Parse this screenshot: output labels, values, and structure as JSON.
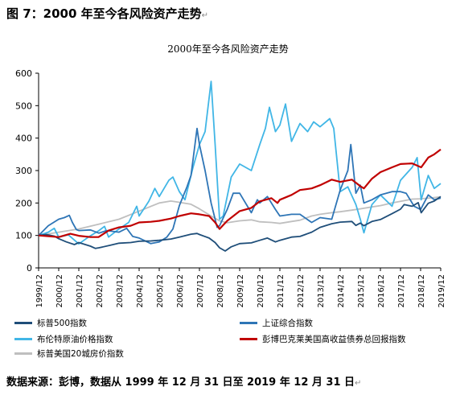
{
  "figure": {
    "label": "图 7：2000 年至今各风险资产走势",
    "trail_mark": "↵"
  },
  "footer": {
    "text": "数据来源：彭博，数据从 1999 年 12 月 31 日至 2019 年 12 月 31 日",
    "trail_mark": "↵"
  },
  "chart_data": {
    "type": "line",
    "title": "2000年至今各风险资产走势",
    "ylim": [
      0,
      600
    ],
    "yticks": [
      0,
      100,
      200,
      300,
      400,
      500,
      600
    ],
    "x_range": [
      "1999/12",
      "2019/12"
    ],
    "xticks": [
      "1999/12",
      "2000/12",
      "2001/12",
      "2002/12",
      "2003/12",
      "2004/12",
      "2005/12",
      "2006/12",
      "2007/12",
      "2008/12",
      "2009/12",
      "2010/12",
      "2011/12",
      "2012/12",
      "2013/12",
      "2014/12",
      "2015/12",
      "2016/12",
      "2017/12",
      "2018/12",
      "2019/12"
    ],
    "grid": false,
    "legend_position": "bottom",
    "series": [
      {
        "name": "标普500指数",
        "color": "#1f4e79",
        "points": [
          [
            1999.92,
            100
          ],
          [
            2000.3,
            103
          ],
          [
            2000.7,
            98
          ],
          [
            2000.92,
            90
          ],
          [
            2001.3,
            80
          ],
          [
            2001.7,
            72
          ],
          [
            2001.92,
            78
          ],
          [
            2002.5,
            67
          ],
          [
            2002.75,
            60
          ],
          [
            2002.92,
            62
          ],
          [
            2003.5,
            70
          ],
          [
            2003.92,
            76
          ],
          [
            2004.5,
            78
          ],
          [
            2004.92,
            82
          ],
          [
            2005.5,
            83
          ],
          [
            2005.92,
            85
          ],
          [
            2006.5,
            89
          ],
          [
            2006.92,
            95
          ],
          [
            2007.5,
            104
          ],
          [
            2007.8,
            106
          ],
          [
            2007.92,
            103
          ],
          [
            2008.4,
            92
          ],
          [
            2008.7,
            78
          ],
          [
            2008.92,
            62
          ],
          [
            2009.2,
            52
          ],
          [
            2009.5,
            65
          ],
          [
            2009.92,
            75
          ],
          [
            2010.5,
            77
          ],
          [
            2010.92,
            85
          ],
          [
            2011.3,
            92
          ],
          [
            2011.7,
            80
          ],
          [
            2011.92,
            85
          ],
          [
            2012.5,
            95
          ],
          [
            2012.92,
            97
          ],
          [
            2013.5,
            110
          ],
          [
            2013.92,
            125
          ],
          [
            2014.5,
            136
          ],
          [
            2014.92,
            141
          ],
          [
            2015.5,
            143
          ],
          [
            2015.7,
            131
          ],
          [
            2015.92,
            138
          ],
          [
            2016.1,
            130
          ],
          [
            2016.5,
            143
          ],
          [
            2016.92,
            149
          ],
          [
            2017.5,
            167
          ],
          [
            2017.92,
            181
          ],
          [
            2018.1,
            195
          ],
          [
            2018.5,
            190
          ],
          [
            2018.8,
            201
          ],
          [
            2018.95,
            170
          ],
          [
            2019.3,
            199
          ],
          [
            2019.6,
            206
          ],
          [
            2019.92,
            220
          ]
        ]
      },
      {
        "name": "上证综合指数",
        "color": "#2e75b6",
        "points": [
          [
            1999.92,
            100
          ],
          [
            2000.4,
            130
          ],
          [
            2000.92,
            150
          ],
          [
            2001.2,
            155
          ],
          [
            2001.45,
            162
          ],
          [
            2001.6,
            140
          ],
          [
            2001.8,
            118
          ],
          [
            2001.92,
            115
          ],
          [
            2002.5,
            117
          ],
          [
            2002.92,
            107
          ],
          [
            2003.3,
            115
          ],
          [
            2003.92,
            110
          ],
          [
            2004.3,
            122
          ],
          [
            2004.6,
            97
          ],
          [
            2004.92,
            92
          ],
          [
            2005.5,
            75
          ],
          [
            2005.92,
            80
          ],
          [
            2006.3,
            95
          ],
          [
            2006.6,
            120
          ],
          [
            2006.92,
            192
          ],
          [
            2007.3,
            250
          ],
          [
            2007.5,
            285
          ],
          [
            2007.8,
            430
          ],
          [
            2007.92,
            380
          ],
          [
            2008.2,
            300
          ],
          [
            2008.5,
            200
          ],
          [
            2008.8,
            125
          ],
          [
            2008.92,
            130
          ],
          [
            2009.3,
            180
          ],
          [
            2009.6,
            230
          ],
          [
            2009.92,
            230
          ],
          [
            2010.5,
            170
          ],
          [
            2010.8,
            210
          ],
          [
            2010.92,
            200
          ],
          [
            2011.3,
            220
          ],
          [
            2011.7,
            180
          ],
          [
            2011.92,
            160
          ],
          [
            2012.5,
            165
          ],
          [
            2012.92,
            165
          ],
          [
            2013.5,
            140
          ],
          [
            2013.92,
            155
          ],
          [
            2014.5,
            150
          ],
          [
            2014.92,
            240
          ],
          [
            2015.3,
            300
          ],
          [
            2015.45,
            380
          ],
          [
            2015.5,
            350
          ],
          [
            2015.7,
            230
          ],
          [
            2015.92,
            255
          ],
          [
            2016.1,
            200
          ],
          [
            2016.5,
            210
          ],
          [
            2016.92,
            225
          ],
          [
            2017.5,
            235
          ],
          [
            2017.92,
            235
          ],
          [
            2018.2,
            230
          ],
          [
            2018.6,
            190
          ],
          [
            2018.92,
            180
          ],
          [
            2019.3,
            225
          ],
          [
            2019.6,
            210
          ],
          [
            2019.92,
            215
          ]
        ]
      },
      {
        "name": "布伦特原油价格指数",
        "color": "#41b6e6",
        "points": [
          [
            1999.92,
            100
          ],
          [
            2000.4,
            110
          ],
          [
            2000.7,
            122
          ],
          [
            2000.92,
            95
          ],
          [
            2001.4,
            102
          ],
          [
            2001.92,
            74
          ],
          [
            2002.4,
            95
          ],
          [
            2002.92,
            115
          ],
          [
            2003.2,
            128
          ],
          [
            2003.4,
            95
          ],
          [
            2003.92,
            120
          ],
          [
            2004.4,
            140
          ],
          [
            2004.8,
            190
          ],
          [
            2004.92,
            160
          ],
          [
            2005.4,
            205
          ],
          [
            2005.7,
            245
          ],
          [
            2005.92,
            220
          ],
          [
            2006.4,
            270
          ],
          [
            2006.6,
            280
          ],
          [
            2006.92,
            235
          ],
          [
            2007.2,
            210
          ],
          [
            2007.6,
            310
          ],
          [
            2007.92,
            380
          ],
          [
            2008.2,
            420
          ],
          [
            2008.5,
            575
          ],
          [
            2008.7,
            380
          ],
          [
            2008.92,
            150
          ],
          [
            2009.1,
            160
          ],
          [
            2009.5,
            280
          ],
          [
            2009.92,
            320
          ],
          [
            2010.5,
            300
          ],
          [
            2010.92,
            380
          ],
          [
            2011.2,
            430
          ],
          [
            2011.4,
            495
          ],
          [
            2011.7,
            420
          ],
          [
            2011.92,
            440
          ],
          [
            2012.2,
            505
          ],
          [
            2012.5,
            390
          ],
          [
            2012.92,
            445
          ],
          [
            2013.3,
            420
          ],
          [
            2013.6,
            450
          ],
          [
            2013.92,
            435
          ],
          [
            2014.4,
            460
          ],
          [
            2014.6,
            430
          ],
          [
            2014.92,
            235
          ],
          [
            2015.3,
            250
          ],
          [
            2015.7,
            195
          ],
          [
            2015.92,
            150
          ],
          [
            2016.1,
            108
          ],
          [
            2016.5,
            195
          ],
          [
            2016.92,
            225
          ],
          [
            2017.5,
            190
          ],
          [
            2017.92,
            270
          ],
          [
            2018.5,
            310
          ],
          [
            2018.75,
            340
          ],
          [
            2018.95,
            210
          ],
          [
            2019.3,
            285
          ],
          [
            2019.6,
            245
          ],
          [
            2019.92,
            260
          ]
        ]
      },
      {
        "name": "彭博巴克莱美国高收益债券总回报指数",
        "color": "#c00000",
        "points": [
          [
            1999.92,
            100
          ],
          [
            2000.92,
            95
          ],
          [
            2001.5,
            105
          ],
          [
            2001.92,
            99
          ],
          [
            2002.5,
            95
          ],
          [
            2002.9,
            95
          ],
          [
            2003.4,
            115
          ],
          [
            2003.92,
            125
          ],
          [
            2004.5,
            130
          ],
          [
            2004.92,
            140
          ],
          [
            2005.5,
            142
          ],
          [
            2005.92,
            145
          ],
          [
            2006.5,
            152
          ],
          [
            2006.92,
            160
          ],
          [
            2007.5,
            168
          ],
          [
            2007.92,
            165
          ],
          [
            2008.4,
            160
          ],
          [
            2008.7,
            140
          ],
          [
            2008.92,
            120
          ],
          [
            2009.3,
            145
          ],
          [
            2009.92,
            175
          ],
          [
            2010.5,
            185
          ],
          [
            2010.92,
            205
          ],
          [
            2011.5,
            215
          ],
          [
            2011.8,
            200
          ],
          [
            2011.92,
            210
          ],
          [
            2012.5,
            225
          ],
          [
            2012.92,
            240
          ],
          [
            2013.5,
            245
          ],
          [
            2013.92,
            255
          ],
          [
            2014.5,
            272
          ],
          [
            2014.92,
            265
          ],
          [
            2015.5,
            272
          ],
          [
            2015.92,
            252
          ],
          [
            2016.1,
            245
          ],
          [
            2016.5,
            275
          ],
          [
            2016.92,
            295
          ],
          [
            2017.5,
            310
          ],
          [
            2017.92,
            320
          ],
          [
            2018.5,
            322
          ],
          [
            2018.95,
            310
          ],
          [
            2019.3,
            340
          ],
          [
            2019.6,
            350
          ],
          [
            2019.92,
            365
          ]
        ]
      },
      {
        "name": "标普美国20城房价指数",
        "color": "#bfbfbf",
        "points": [
          [
            1999.92,
            100
          ],
          [
            2000.92,
            110
          ],
          [
            2001.92,
            120
          ],
          [
            2002.92,
            135
          ],
          [
            2003.92,
            150
          ],
          [
            2004.92,
            175
          ],
          [
            2005.92,
            200
          ],
          [
            2006.5,
            206
          ],
          [
            2006.92,
            202
          ],
          [
            2007.5,
            196
          ],
          [
            2007.92,
            182
          ],
          [
            2008.5,
            160
          ],
          [
            2008.92,
            145
          ],
          [
            2009.3,
            139
          ],
          [
            2009.92,
            145
          ],
          [
            2010.5,
            148
          ],
          [
            2010.92,
            142
          ],
          [
            2011.5,
            140
          ],
          [
            2011.92,
            137
          ],
          [
            2012.5,
            143
          ],
          [
            2012.92,
            147
          ],
          [
            2013.5,
            160
          ],
          [
            2013.92,
            165
          ],
          [
            2014.5,
            170
          ],
          [
            2014.92,
            173
          ],
          [
            2015.5,
            178
          ],
          [
            2015.92,
            182
          ],
          [
            2016.5,
            188
          ],
          [
            2016.92,
            192
          ],
          [
            2017.5,
            200
          ],
          [
            2017.92,
            205
          ],
          [
            2018.5,
            212
          ],
          [
            2018.92,
            213
          ],
          [
            2019.5,
            216
          ],
          [
            2019.92,
            219
          ]
        ]
      }
    ]
  }
}
